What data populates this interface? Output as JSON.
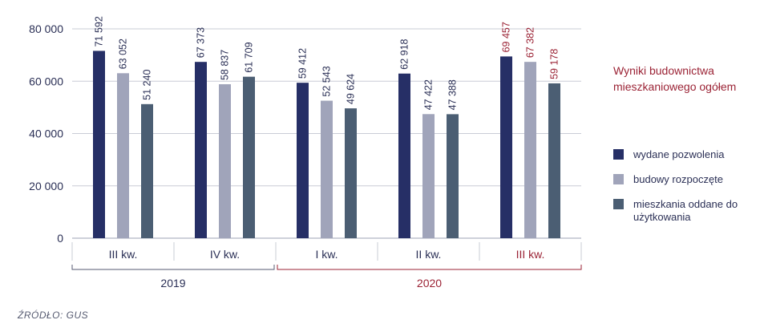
{
  "chart_data": {
    "type": "bar",
    "title": "Wyniki budownictwa mieszkaniowego ogółem",
    "categories": [
      "III kw.",
      "IV kw.",
      "I kw.",
      "II kw.",
      "III kw."
    ],
    "years": [
      {
        "label": "2019",
        "span": [
          0,
          1
        ]
      },
      {
        "label": "2020",
        "span": [
          2,
          4
        ]
      }
    ],
    "y_ticks": [
      "0",
      "20 000",
      "40 000",
      "60 000",
      "80 000"
    ],
    "ylim": [
      0,
      80000
    ],
    "grid": true,
    "legend_position": "right",
    "series": [
      {
        "name": "wydane pozwolenia",
        "color": "#262f66",
        "values": [
          71592,
          67373,
          59412,
          62918,
          69457
        ],
        "labels": [
          "71 592",
          "67 373",
          "59 412",
          "62 918",
          "69 457"
        ]
      },
      {
        "name": "budowy rozpoczęte",
        "color": "#a0a4ba",
        "values": [
          63052,
          58837,
          52543,
          47422,
          67382
        ],
        "labels": [
          "63 052",
          "58 837",
          "52 543",
          "47 422",
          "67 382"
        ]
      },
      {
        "name": "mieszkania oddane do użytkowania",
        "color": "#4b5e73",
        "values": [
          51240,
          61709,
          49624,
          47388,
          59178
        ],
        "labels": [
          "51 240",
          "61 709",
          "49 624",
          "47 388",
          "59 178"
        ]
      }
    ],
    "highlight_color": "#9b2335",
    "highlight_category_index": 4,
    "highlight_year_index": 1
  },
  "legend": {
    "title": "Wyniki budownictwa mieszkaniowego ogółem",
    "items": [
      {
        "label": "wydane pozwolenia",
        "color": "#262f66"
      },
      {
        "label": "budowy rozpoczęte",
        "color": "#a0a4ba"
      },
      {
        "label": "mieszkania oddane do użytkowania",
        "color": "#4b5e73"
      }
    ]
  },
  "source": "ŹRÓDŁO: GUS"
}
